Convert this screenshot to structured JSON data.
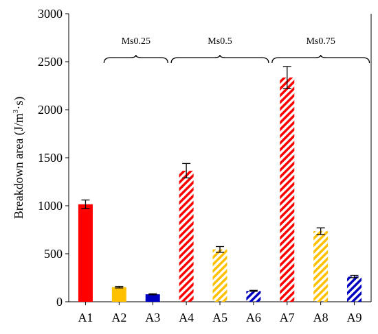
{
  "chart_data": {
    "type": "bar",
    "categories": [
      "A1",
      "A2",
      "A3",
      "A4",
      "A5",
      "A6",
      "A7",
      "A8",
      "A9"
    ],
    "values": [
      1015,
      152,
      78,
      1365,
      545,
      113,
      2335,
      735,
      263
    ],
    "errors": [
      45,
      8,
      5,
      75,
      30,
      6,
      115,
      35,
      12
    ],
    "fills": [
      "solid",
      "solid",
      "solid",
      "hatch",
      "hatch",
      "hatch",
      "hatch",
      "hatch",
      "hatch"
    ],
    "colors": [
      "#ff0000",
      "#ffc000",
      "#0000c0",
      "#ff0000",
      "#ffc000",
      "#0000c0",
      "#ff0000",
      "#ffc000",
      "#0000c0"
    ],
    "ylabel_main": "Breakdown area (J/m",
    "ylabel_sup": "3",
    "ylabel_tail": "·s)",
    "ylim": [
      0,
      3000
    ],
    "yticks": [
      0,
      500,
      1000,
      1500,
      2000,
      2500,
      3000
    ],
    "groups": [
      {
        "label": "Ms0.25",
        "from": 1,
        "to": 2
      },
      {
        "label": "Ms0.5",
        "from": 3,
        "to": 5
      },
      {
        "label": "Ms0.75",
        "from": 6,
        "to": 8
      }
    ],
    "grid": false,
    "legend": false
  }
}
